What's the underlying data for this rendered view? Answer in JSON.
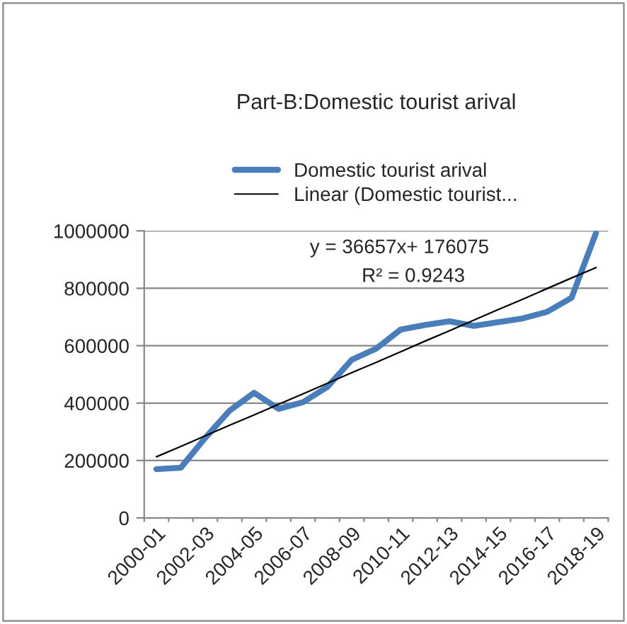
{
  "chart_data": {
    "type": "line",
    "title": "Part-B:Domestic tourist arival",
    "categories": [
      "2000-01",
      null,
      "2002-03",
      null,
      "2004-05",
      null,
      "2006-07",
      null,
      "2008-09",
      null,
      "2010-11",
      null,
      "2012-13",
      null,
      "2014-15",
      null,
      "2016-17",
      null,
      "2018-19"
    ],
    "series": [
      {
        "name": "Domestic tourist arival",
        "color": "#4a7ebb",
        "values": [
          170000,
          175000,
          279000,
          374000,
          436000,
          380000,
          403000,
          456000,
          551000,
          590000,
          656000,
          672000,
          685000,
          669000,
          682000,
          695000,
          718000,
          767000,
          992000
        ]
      },
      {
        "name": "Linear (Domestic tourist...",
        "color": "#000000",
        "values": [
          213000,
          249000,
          286000,
          323000,
          359000,
          396000,
          432000,
          469000,
          506000,
          542000,
          579000,
          616000,
          652000,
          689000,
          726000,
          762000,
          799000,
          836000,
          872000
        ]
      }
    ],
    "annotations": [
      "y = 36657x+ 176075",
      "R² = 0.9243"
    ],
    "ylim": [
      0,
      1000000
    ],
    "yticks": [
      0,
      200000,
      400000,
      600000,
      800000,
      1000000
    ],
    "grid": "y",
    "legend": "top"
  }
}
